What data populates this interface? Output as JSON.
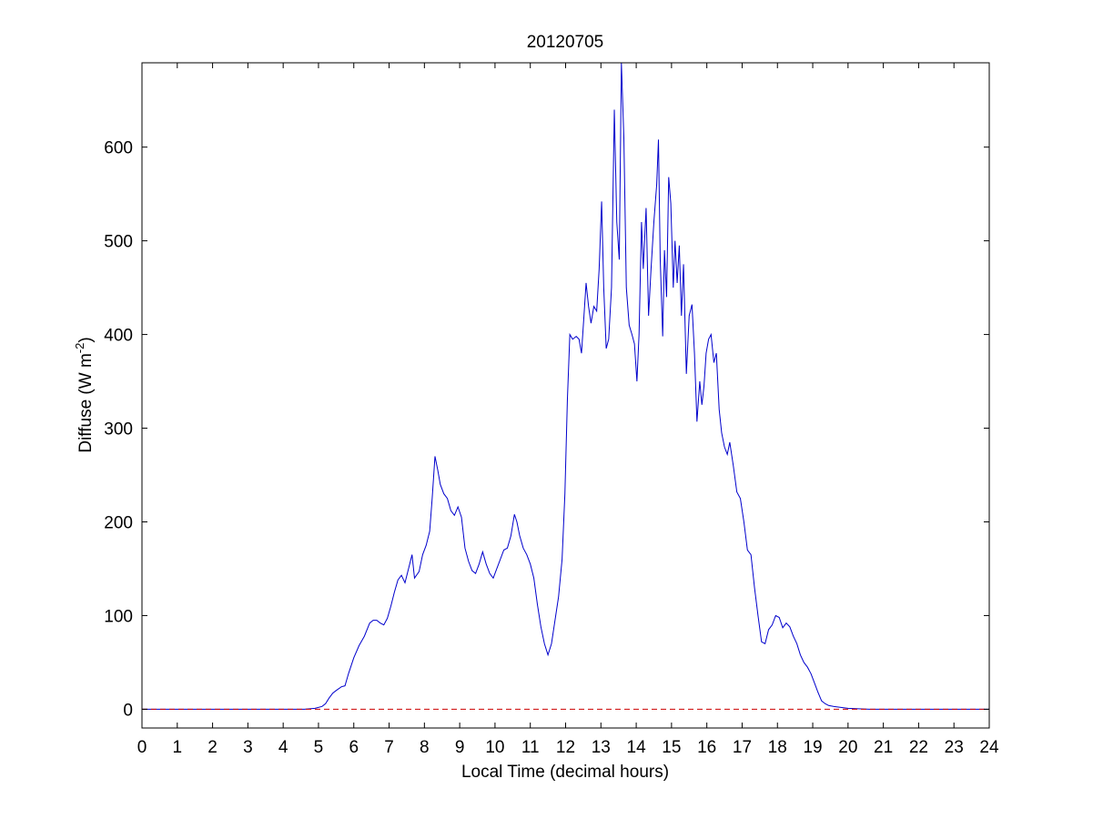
{
  "colors": {
    "series": "#0000cc",
    "baseline": "#cc0000",
    "axes": "#000000",
    "background": "#ffffff"
  },
  "chart_data": {
    "type": "line",
    "title": "20120705",
    "xlabel": "Local Time (decimal hours)",
    "ylabel_main": "Diffuse (W m",
    "ylabel_sup": "-2",
    "ylabel_close": ")",
    "xlim": [
      0,
      24
    ],
    "ylim": [
      -20,
      690
    ],
    "xticks": [
      0,
      1,
      2,
      3,
      4,
      5,
      6,
      7,
      8,
      9,
      10,
      11,
      12,
      13,
      14,
      15,
      16,
      17,
      18,
      19,
      20,
      21,
      22,
      23,
      24
    ],
    "yticks": [
      0,
      100,
      200,
      300,
      400,
      500,
      600
    ],
    "grid": false,
    "series": [
      {
        "style": "solid",
        "points": [
          [
            0,
            0
          ],
          [
            4.6,
            0
          ],
          [
            4.9,
            1
          ],
          [
            5.1,
            3
          ],
          [
            5.2,
            6
          ],
          [
            5.3,
            12
          ],
          [
            5.4,
            17
          ],
          [
            5.5,
            20
          ],
          [
            5.65,
            24
          ],
          [
            5.75,
            25
          ],
          [
            5.85,
            38
          ],
          [
            6.0,
            55
          ],
          [
            6.15,
            68
          ],
          [
            6.3,
            78
          ],
          [
            6.45,
            92
          ],
          [
            6.55,
            95
          ],
          [
            6.65,
            95
          ],
          [
            6.75,
            92
          ],
          [
            6.85,
            90
          ],
          [
            6.95,
            97
          ],
          [
            7.05,
            110
          ],
          [
            7.15,
            125
          ],
          [
            7.25,
            138
          ],
          [
            7.35,
            143
          ],
          [
            7.45,
            135
          ],
          [
            7.55,
            150
          ],
          [
            7.65,
            165
          ],
          [
            7.72,
            140
          ],
          [
            7.85,
            147
          ],
          [
            7.95,
            165
          ],
          [
            8.05,
            175
          ],
          [
            8.15,
            190
          ],
          [
            8.22,
            225
          ],
          [
            8.3,
            270
          ],
          [
            8.38,
            255
          ],
          [
            8.45,
            240
          ],
          [
            8.55,
            230
          ],
          [
            8.65,
            225
          ],
          [
            8.75,
            212
          ],
          [
            8.85,
            207
          ],
          [
            8.95,
            216
          ],
          [
            9.05,
            205
          ],
          [
            9.15,
            172
          ],
          [
            9.25,
            158
          ],
          [
            9.35,
            148
          ],
          [
            9.45,
            145
          ],
          [
            9.55,
            155
          ],
          [
            9.65,
            168
          ],
          [
            9.75,
            155
          ],
          [
            9.85,
            145
          ],
          [
            9.95,
            140
          ],
          [
            10.05,
            150
          ],
          [
            10.15,
            160
          ],
          [
            10.25,
            170
          ],
          [
            10.35,
            172
          ],
          [
            10.45,
            185
          ],
          [
            10.55,
            208
          ],
          [
            10.62,
            200
          ],
          [
            10.7,
            185
          ],
          [
            10.8,
            172
          ],
          [
            10.9,
            165
          ],
          [
            11.0,
            155
          ],
          [
            11.1,
            140
          ],
          [
            11.2,
            112
          ],
          [
            11.3,
            88
          ],
          [
            11.4,
            70
          ],
          [
            11.5,
            58
          ],
          [
            11.6,
            70
          ],
          [
            11.7,
            95
          ],
          [
            11.8,
            120
          ],
          [
            11.9,
            160
          ],
          [
            11.98,
            230
          ],
          [
            12.05,
            330
          ],
          [
            12.12,
            400
          ],
          [
            12.2,
            395
          ],
          [
            12.3,
            398
          ],
          [
            12.38,
            395
          ],
          [
            12.45,
            380
          ],
          [
            12.52,
            420
          ],
          [
            12.58,
            455
          ],
          [
            12.65,
            430
          ],
          [
            12.72,
            412
          ],
          [
            12.8,
            430
          ],
          [
            12.88,
            425
          ],
          [
            12.95,
            470
          ],
          [
            13.02,
            542
          ],
          [
            13.08,
            450
          ],
          [
            13.15,
            385
          ],
          [
            13.22,
            395
          ],
          [
            13.3,
            450
          ],
          [
            13.38,
            640
          ],
          [
            13.45,
            520
          ],
          [
            13.52,
            480
          ],
          [
            13.58,
            690
          ],
          [
            13.65,
            610
          ],
          [
            13.72,
            450
          ],
          [
            13.8,
            410
          ],
          [
            13.88,
            400
          ],
          [
            13.95,
            390
          ],
          [
            14.02,
            350
          ],
          [
            14.08,
            400
          ],
          [
            14.15,
            520
          ],
          [
            14.2,
            470
          ],
          [
            14.28,
            535
          ],
          [
            14.35,
            420
          ],
          [
            14.42,
            470
          ],
          [
            14.5,
            520
          ],
          [
            14.58,
            560
          ],
          [
            14.63,
            608
          ],
          [
            14.68,
            480
          ],
          [
            14.75,
            398
          ],
          [
            14.8,
            490
          ],
          [
            14.86,
            440
          ],
          [
            14.92,
            568
          ],
          [
            14.98,
            540
          ],
          [
            15.05,
            450
          ],
          [
            15.1,
            500
          ],
          [
            15.16,
            455
          ],
          [
            15.22,
            495
          ],
          [
            15.28,
            420
          ],
          [
            15.34,
            475
          ],
          [
            15.42,
            358
          ],
          [
            15.5,
            420
          ],
          [
            15.58,
            432
          ],
          [
            15.65,
            380
          ],
          [
            15.72,
            307
          ],
          [
            15.8,
            350
          ],
          [
            15.86,
            325
          ],
          [
            15.92,
            345
          ],
          [
            15.98,
            380
          ],
          [
            16.05,
            395
          ],
          [
            16.12,
            400
          ],
          [
            16.2,
            370
          ],
          [
            16.27,
            380
          ],
          [
            16.35,
            320
          ],
          [
            16.42,
            295
          ],
          [
            16.5,
            280
          ],
          [
            16.58,
            272
          ],
          [
            16.65,
            285
          ],
          [
            16.75,
            260
          ],
          [
            16.85,
            232
          ],
          [
            16.95,
            225
          ],
          [
            17.05,
            200
          ],
          [
            17.15,
            170
          ],
          [
            17.25,
            165
          ],
          [
            17.35,
            130
          ],
          [
            17.45,
            100
          ],
          [
            17.55,
            72
          ],
          [
            17.65,
            70
          ],
          [
            17.75,
            85
          ],
          [
            17.85,
            90
          ],
          [
            17.95,
            100
          ],
          [
            18.05,
            98
          ],
          [
            18.15,
            87
          ],
          [
            18.25,
            92
          ],
          [
            18.35,
            88
          ],
          [
            18.45,
            78
          ],
          [
            18.55,
            70
          ],
          [
            18.65,
            58
          ],
          [
            18.75,
            50
          ],
          [
            18.85,
            45
          ],
          [
            18.95,
            38
          ],
          [
            19.05,
            28
          ],
          [
            19.15,
            18
          ],
          [
            19.25,
            9
          ],
          [
            19.35,
            6
          ],
          [
            19.45,
            4
          ],
          [
            19.6,
            3
          ],
          [
            19.8,
            2
          ],
          [
            20.0,
            1
          ],
          [
            20.3,
            0.5
          ],
          [
            20.6,
            0
          ],
          [
            24,
            0
          ]
        ]
      },
      {
        "style": "dashed",
        "points": [
          [
            0,
            0
          ],
          [
            24,
            0
          ]
        ]
      }
    ]
  }
}
